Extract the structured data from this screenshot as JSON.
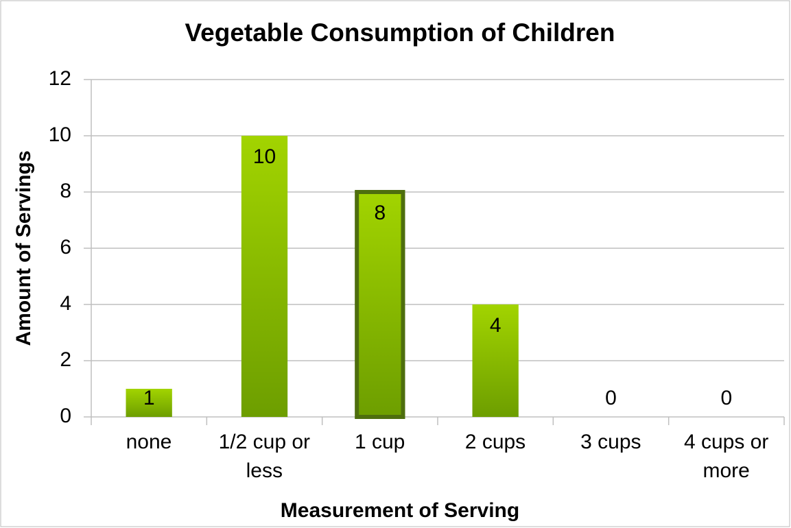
{
  "chart_data": {
    "type": "bar",
    "title": "Vegetable Consumption of Children",
    "x_label": "Measurement of Serving",
    "y_label": "Amount of Servings",
    "categories": [
      "none",
      "1/2 cup or less",
      "1 cup",
      "2 cups",
      "3 cups",
      "4 cups or more"
    ],
    "values": [
      1,
      10,
      8,
      4,
      0,
      0
    ],
    "color": "#8cc000",
    "ylim": [
      0,
      12
    ],
    "yticks": [
      0,
      2,
      4,
      6,
      8,
      10,
      12
    ],
    "grid": true
  }
}
